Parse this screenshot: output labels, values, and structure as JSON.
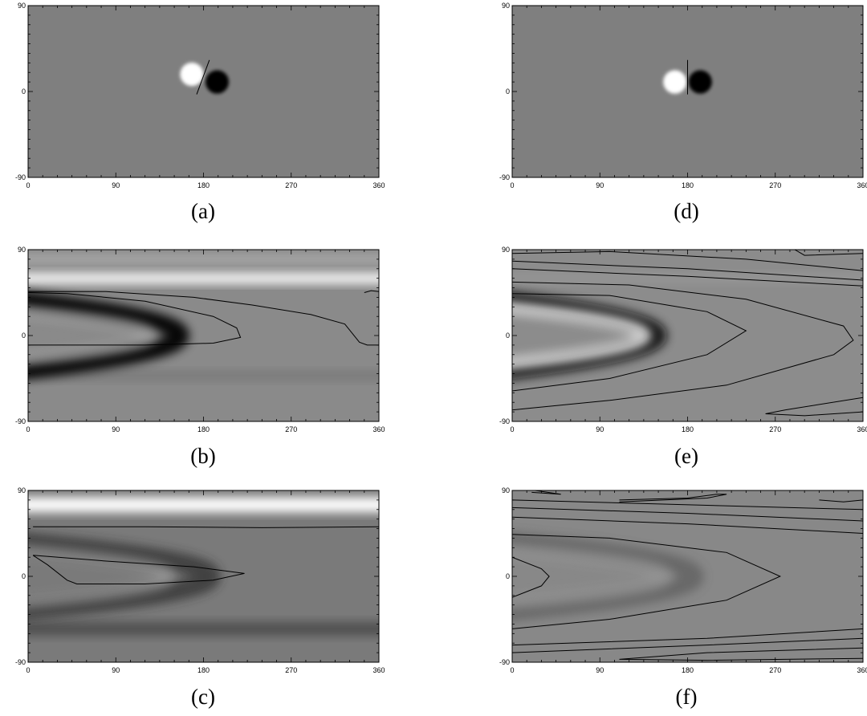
{
  "chart_data": [
    {
      "id": "a",
      "caption": "(a)",
      "type": "heatmap",
      "x_ticks": [
        "0",
        "90",
        "180",
        "270",
        "360"
      ],
      "y_ticks": [
        "90",
        "0",
        "-90"
      ],
      "xlim": [
        0,
        360
      ],
      "ylim": [
        -90,
        90
      ],
      "background": "#7f7f7f",
      "blobs": [
        {
          "lon": 168,
          "lat": 18,
          "r": 12,
          "color": "#ffffff"
        },
        {
          "lon": 194,
          "lat": 10,
          "r": 12,
          "color": "#000000"
        }
      ],
      "bands": [],
      "contours": [
        {
          "points": [
            [
              173,
              -3
            ],
            [
              186,
              33
            ]
          ]
        }
      ]
    },
    {
      "id": "b",
      "caption": "(b)",
      "type": "heatmap",
      "x_ticks": [
        "0",
        "90",
        "180",
        "270",
        "360"
      ],
      "y_ticks": [
        "90",
        "0",
        "-90"
      ],
      "xlim": [
        0,
        360
      ],
      "ylim": [
        -90,
        90
      ],
      "background": "#8a8a8a",
      "blobs": [],
      "bands": [
        {
          "lat": 60,
          "width": 12,
          "color": "#ffffff",
          "opacity": 0.9
        },
        {
          "lat": 80,
          "width": 10,
          "color": "#bdbdbd",
          "opacity": 0.6
        },
        {
          "lat": -42,
          "width": 10,
          "color": "#6a6a6a",
          "opacity": 0.5
        }
      ],
      "arcs": [
        {
          "tip": 270,
          "base": 0,
          "lat": 0,
          "half": 40,
          "color": "#000000",
          "w": 22,
          "opacity": 0.95
        },
        {
          "tip": 220,
          "base": 0,
          "lat": 0,
          "half": 28,
          "color": "#b0b0b0",
          "w": 16,
          "opacity": 0.5
        }
      ],
      "contours": [
        {
          "points": [
            [
              0,
              -10
            ],
            [
              120,
              -10
            ],
            [
              190,
              -8
            ],
            [
              218,
              -2
            ],
            [
              214,
              8
            ],
            [
              190,
              20
            ],
            [
              120,
              36
            ],
            [
              40,
              44
            ],
            [
              0,
              45
            ]
          ]
        },
        {
          "points": [
            [
              0,
              46
            ],
            [
              80,
              46
            ],
            [
              170,
              40
            ],
            [
              230,
              32
            ],
            [
              290,
              22
            ],
            [
              325,
              12
            ],
            [
              340,
              -7
            ],
            [
              348,
              -10
            ],
            [
              355,
              -10
            ],
            [
              360,
              -10
            ]
          ]
        },
        {
          "points": [
            [
              345,
              45
            ],
            [
              352,
              47
            ],
            [
              360,
              46
            ]
          ]
        }
      ]
    },
    {
      "id": "c",
      "caption": "(c)",
      "type": "heatmap",
      "x_ticks": [
        "0",
        "90",
        "180",
        "270",
        "360"
      ],
      "y_ticks": [
        "90",
        "0",
        "-90"
      ],
      "xlim": [
        0,
        360
      ],
      "ylim": [
        -90,
        90
      ],
      "background": "#7a7a7a",
      "blobs": [],
      "bands": [
        {
          "lat": 75,
          "width": 16,
          "color": "#ffffff",
          "opacity": 1
        },
        {
          "lat": -55,
          "width": 14,
          "color": "#3c3c3c",
          "opacity": 0.7
        }
      ],
      "arcs": [
        {
          "tip": 320,
          "base": 0,
          "lat": 0,
          "half": 38,
          "color": "#2a2a2a",
          "w": 24,
          "opacity": 0.7
        },
        {
          "tip": 250,
          "base": 0,
          "lat": 0,
          "half": 30,
          "color": "#a8a8a8",
          "w": 16,
          "opacity": 0.5
        }
      ],
      "contours": [
        {
          "points": [
            [
              5,
              52
            ],
            [
              120,
              52
            ],
            [
              240,
              51
            ],
            [
              360,
              52
            ]
          ]
        },
        {
          "points": [
            [
              5,
              22
            ],
            [
              80,
              16
            ],
            [
              170,
              10
            ],
            [
              222,
              3
            ],
            [
              190,
              -4
            ],
            [
              120,
              -8
            ],
            [
              50,
              -8
            ],
            [
              40,
              -4
            ],
            [
              20,
              12
            ],
            [
              5,
              22
            ]
          ]
        }
      ]
    },
    {
      "id": "d",
      "caption": "(d)",
      "type": "heatmap",
      "x_ticks": [
        "0",
        "90",
        "180",
        "270",
        "360"
      ],
      "y_ticks": [
        "90",
        "0",
        "-90"
      ],
      "xlim": [
        0,
        360
      ],
      "ylim": [
        -90,
        90
      ],
      "background": "#7f7f7f",
      "blobs": [
        {
          "lon": 167,
          "lat": 10,
          "r": 12,
          "color": "#ffffff"
        },
        {
          "lon": 193,
          "lat": 10,
          "r": 12,
          "color": "#000000"
        }
      ],
      "bands": [],
      "contours": [
        {
          "points": [
            [
              180,
              -3
            ],
            [
              180,
              33
            ]
          ]
        }
      ]
    },
    {
      "id": "e",
      "caption": "(e)",
      "type": "heatmap",
      "x_ticks": [
        "0",
        "90",
        "180",
        "270",
        "360"
      ],
      "y_ticks": [
        "90",
        "0",
        "-90"
      ],
      "xlim": [
        0,
        360
      ],
      "ylim": [
        -90,
        90
      ],
      "background": "#8c8c8c",
      "blobs": [],
      "bands": [
        {
          "lat": 60,
          "width": 10,
          "color": "#a0a0a0",
          "opacity": 0.5
        }
      ],
      "arcs": [
        {
          "tip": 262,
          "base": 0,
          "lat": 0,
          "half": 42,
          "color": "#101010",
          "w": 18,
          "opacity": 0.9
        },
        {
          "tip": 236,
          "base": 0,
          "lat": 0,
          "half": 32,
          "color": "#e0e0e0",
          "w": 16,
          "opacity": 0.8
        }
      ],
      "contours": [
        {
          "points": [
            [
              0,
              44
            ],
            [
              100,
              42
            ],
            [
              200,
              25
            ],
            [
              240,
              5
            ],
            [
              200,
              -20
            ],
            [
              100,
              -45
            ],
            [
              0,
              -58
            ]
          ]
        },
        {
          "points": [
            [
              0,
              56
            ],
            [
              120,
              53
            ],
            [
              240,
              38
            ],
            [
              340,
              10
            ],
            [
              350,
              -5
            ],
            [
              330,
              -20
            ],
            [
              220,
              -52
            ],
            [
              100,
              -68
            ],
            [
              0,
              -78
            ]
          ]
        },
        {
          "points": [
            [
              0,
              70
            ],
            [
              180,
              62
            ],
            [
              360,
              52
            ]
          ]
        },
        {
          "points": [
            [
              0,
              78
            ],
            [
              180,
              70
            ],
            [
              360,
              58
            ]
          ]
        },
        {
          "points": [
            [
              0,
              86
            ],
            [
              100,
              88
            ],
            [
              240,
              80
            ],
            [
              360,
              68
            ]
          ]
        },
        {
          "points": [
            [
              290,
              90
            ],
            [
              300,
              84
            ],
            [
              360,
              86
            ]
          ]
        },
        {
          "points": [
            [
              360,
              -65
            ],
            [
              280,
              -78
            ],
            [
              260,
              -82
            ],
            [
              300,
              -84
            ],
            [
              360,
              -80
            ]
          ]
        }
      ]
    },
    {
      "id": "f",
      "caption": "(f)",
      "type": "heatmap",
      "x_ticks": [
        "0",
        "90",
        "180",
        "270",
        "360"
      ],
      "y_ticks": [
        "90",
        "0",
        "-90"
      ],
      "xlim": [
        0,
        360
      ],
      "ylim": [
        -90,
        90
      ],
      "background": "#888888",
      "blobs": [],
      "bands": [],
      "arcs": [
        {
          "tip": 320,
          "base": 0,
          "lat": 0,
          "half": 40,
          "color": "#4a4a4a",
          "w": 22,
          "opacity": 0.5
        },
        {
          "tip": 270,
          "base": 0,
          "lat": 0,
          "half": 30,
          "color": "#9e9e9e",
          "w": 18,
          "opacity": 0.5
        }
      ],
      "contours": [
        {
          "points": [
            [
              0,
              44
            ],
            [
              100,
              40
            ],
            [
              220,
              25
            ],
            [
              275,
              0
            ],
            [
              220,
              -25
            ],
            [
              100,
              -45
            ],
            [
              0,
              -55
            ]
          ]
        },
        {
          "points": [
            [
              0,
              62
            ],
            [
              180,
              55
            ],
            [
              360,
              45
            ]
          ]
        },
        {
          "points": [
            [
              0,
              72
            ],
            [
              180,
              66
            ],
            [
              360,
              58
            ]
          ]
        },
        {
          "points": [
            [
              0,
              80
            ],
            [
              360,
              70
            ]
          ]
        },
        {
          "points": [
            [
              0,
              20
            ],
            [
              30,
              8
            ],
            [
              38,
              0
            ],
            [
              30,
              -10
            ],
            [
              0,
              -22
            ]
          ]
        },
        {
          "points": [
            [
              360,
              -55
            ],
            [
              200,
              -65
            ],
            [
              0,
              -72
            ]
          ]
        },
        {
          "points": [
            [
              360,
              -65
            ],
            [
              200,
              -72
            ],
            [
              0,
              -80
            ]
          ]
        },
        {
          "points": [
            [
              360,
              -75
            ],
            [
              200,
              -80
            ],
            [
              110,
              -87
            ],
            [
              200,
              -88
            ],
            [
              360,
              -86
            ]
          ]
        },
        {
          "points": [
            [
              10,
              92
            ],
            [
              50,
              86
            ],
            [
              20,
              88
            ]
          ]
        },
        {
          "points": [
            [
              110,
              80
            ],
            [
              180,
              82
            ],
            [
              210,
              86
            ],
            [
              220,
              86
            ],
            [
              200,
              82
            ],
            [
              110,
              78
            ]
          ]
        },
        {
          "points": [
            [
              315,
              80
            ],
            [
              340,
              78
            ],
            [
              360,
              80
            ]
          ]
        }
      ]
    }
  ]
}
